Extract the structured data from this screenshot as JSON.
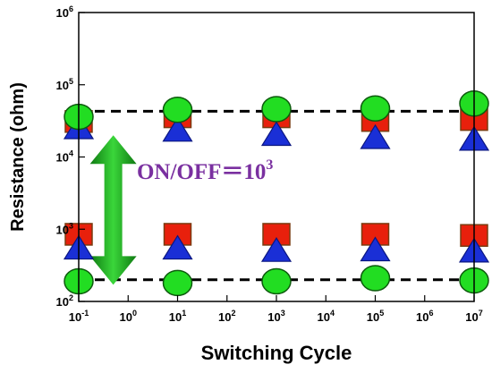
{
  "chart_data": {
    "type": "scatter",
    "title": "",
    "xlabel": "Switching Cycle",
    "ylabel": "Resistance (ohm)",
    "x_scale": "log",
    "y_scale": "log",
    "xlim": [
      0.1,
      10000000
    ],
    "ylim": [
      100,
      1000000
    ],
    "x_ticks": [
      {
        "value": 0.1,
        "base": "10",
        "exp": "-1"
      },
      {
        "value": 1,
        "base": "10",
        "exp": "0"
      },
      {
        "value": 10,
        "base": "10",
        "exp": "1"
      },
      {
        "value": 100,
        "base": "10",
        "exp": "2"
      },
      {
        "value": 1000,
        "base": "10",
        "exp": "3"
      },
      {
        "value": 10000,
        "base": "10",
        "exp": "4"
      },
      {
        "value": 100000,
        "base": "10",
        "exp": "5"
      },
      {
        "value": 1000000,
        "base": "10",
        "exp": "6"
      },
      {
        "value": 10000000,
        "base": "10",
        "exp": "7"
      }
    ],
    "y_ticks": [
      {
        "value": 100,
        "base": "10",
        "exp": "2"
      },
      {
        "value": 1000,
        "base": "10",
        "exp": "3"
      },
      {
        "value": 10000,
        "base": "10",
        "exp": "4"
      },
      {
        "value": 100000,
        "base": "10",
        "exp": "5"
      },
      {
        "value": 1000000,
        "base": "10",
        "exp": "6"
      }
    ],
    "grid": false,
    "legend": "none",
    "x": [
      0.1,
      10,
      1000,
      100000,
      10000000
    ],
    "series": [
      {
        "marker": "square",
        "color": "#e8200c",
        "edge": "#7a3b10",
        "values": [
          31000,
          36000,
          36000,
          32000,
          33000
        ]
      },
      {
        "marker": "square",
        "color": "#e8200c",
        "edge": "#7a3b10",
        "values": [
          850,
          850,
          850,
          850,
          820
        ]
      },
      {
        "marker": "triangle",
        "color": "#1a2fd6",
        "edge": "#0a1680",
        "values": [
          26000,
          24000,
          21000,
          19000,
          18000
        ]
      },
      {
        "marker": "triangle",
        "color": "#1a2fd6",
        "edge": "#0a1680",
        "values": [
          560,
          560,
          520,
          530,
          510
        ]
      },
      {
        "marker": "circle",
        "color": "#22dd22",
        "edge": "#0d5a0d",
        "values": [
          36000,
          45000,
          46000,
          47000,
          55000
        ]
      },
      {
        "marker": "circle",
        "color": "#22dd22",
        "edge": "#0d5a0d",
        "values": [
          190,
          180,
          190,
          210,
          195
        ]
      }
    ],
    "reference_lines": [
      {
        "y": 43000,
        "style": "dashed",
        "color": "#000000"
      },
      {
        "y": 200,
        "style": "dashed",
        "color": "#000000"
      }
    ],
    "annotations": [
      {
        "text_main": "ON/OFF＝10",
        "text_sup": "3",
        "color": "#7a30a0",
        "x": 1.5,
        "y": 5000
      },
      {
        "type": "double-arrow",
        "color": "#1aa01a",
        "x": 0.5,
        "y_from": 20000,
        "y_to": 170
      }
    ]
  }
}
